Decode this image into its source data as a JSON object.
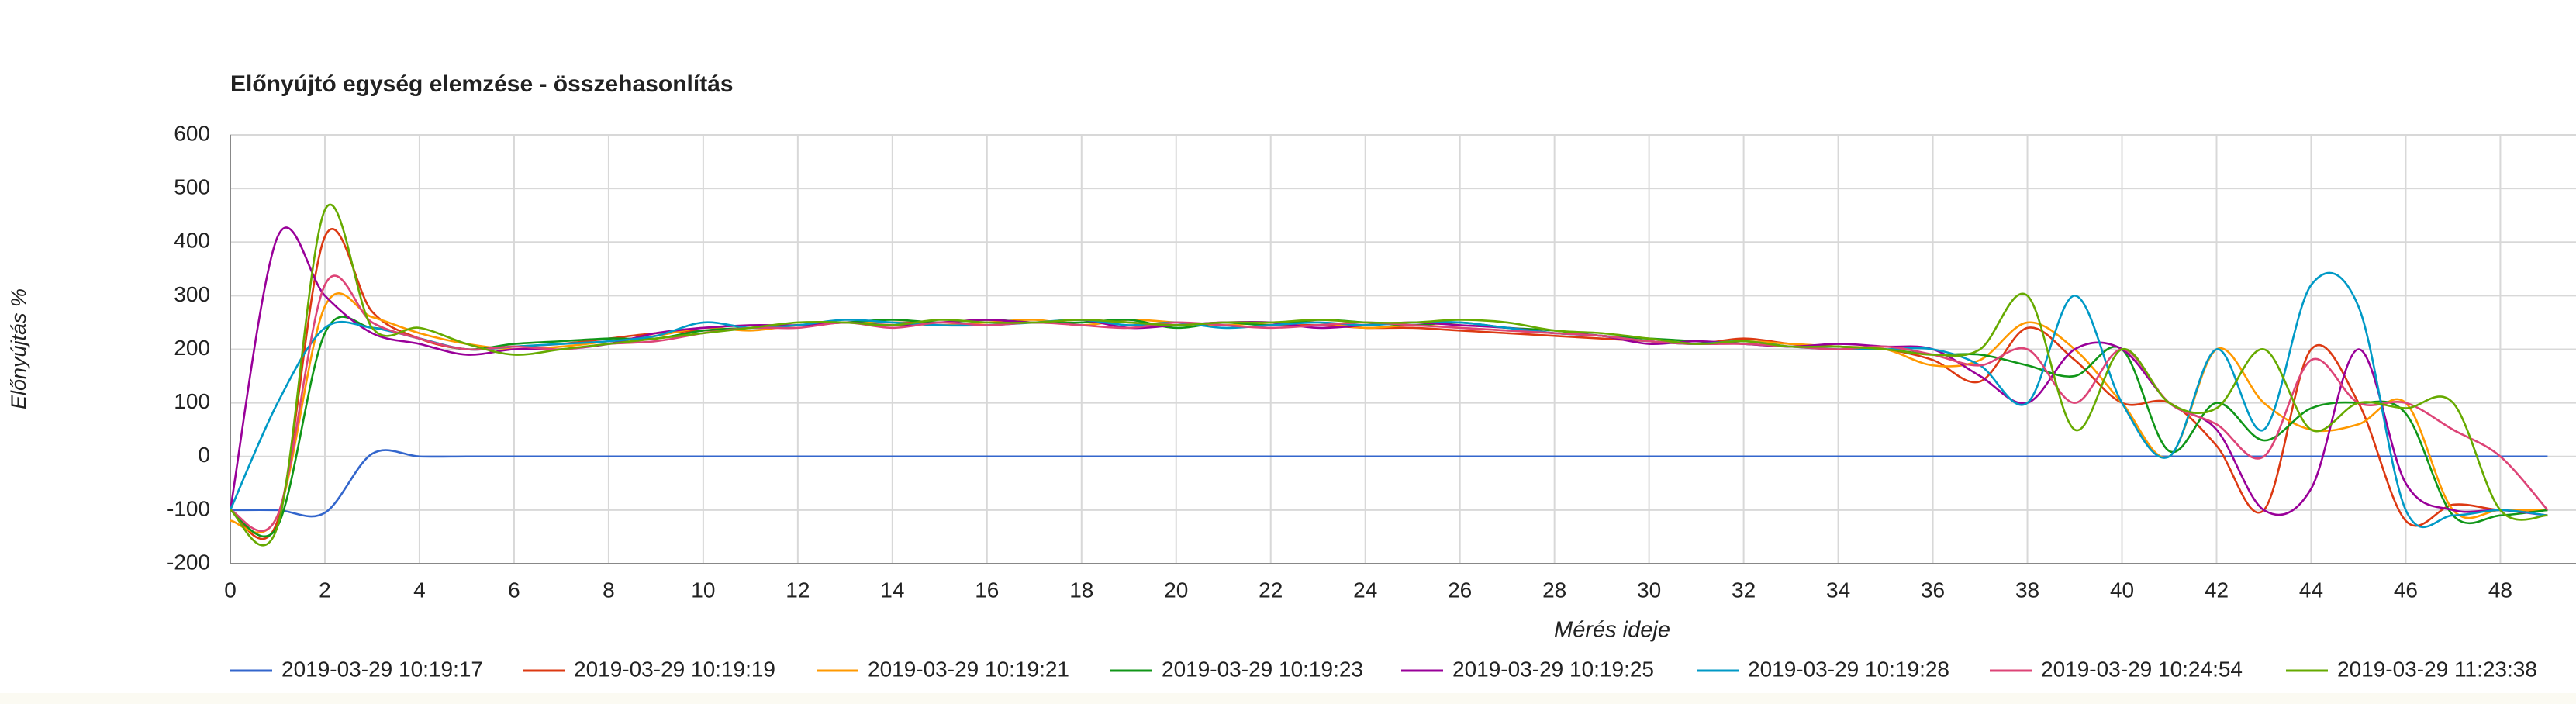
{
  "chart_data": {
    "type": "line",
    "title": "Előnyújtó egység elemzése - összehasonlítás",
    "x_label": "Mérés ideje",
    "y_label": "Előnyújtás %",
    "grid": true,
    "xlim": [
      0,
      49.6
    ],
    "ylim": [
      -200,
      600
    ],
    "xticks": [
      0,
      2,
      4,
      6,
      8,
      10,
      12,
      14,
      16,
      18,
      20,
      22,
      24,
      26,
      28,
      30,
      32,
      34,
      36,
      38,
      40,
      42,
      44,
      46,
      48
    ],
    "yticks": [
      -200,
      -100,
      0,
      100,
      200,
      300,
      400,
      500,
      600
    ],
    "x": [
      0,
      1,
      2,
      3,
      4,
      5,
      6,
      7,
      8,
      9,
      10,
      11,
      12,
      13,
      14,
      15,
      16,
      17,
      18,
      19,
      20,
      21,
      22,
      23,
      24,
      25,
      26,
      27,
      28,
      29,
      30,
      31,
      32,
      33,
      34,
      35,
      36,
      37,
      38,
      39,
      40,
      41,
      42,
      43,
      44,
      45,
      46,
      47,
      48,
      49
    ],
    "series": [
      {
        "name": "2019-03-29 10:19:17",
        "color": "#3366cc",
        "values": [
          -100,
          -100,
          -105,
          5,
          0,
          0,
          0,
          0,
          0,
          0,
          0,
          0,
          0,
          0,
          0,
          0,
          0,
          0,
          0,
          0,
          0,
          0,
          0,
          0,
          0,
          0,
          0,
          0,
          0,
          0,
          0,
          0,
          0,
          0,
          0,
          0,
          0,
          0,
          0,
          0,
          0,
          0,
          0,
          0,
          0,
          0,
          0,
          0,
          0,
          0
        ]
      },
      {
        "name": "2019-03-29 10:19:19",
        "color": "#dc3912",
        "values": [
          -100,
          -120,
          410,
          270,
          220,
          200,
          205,
          210,
          220,
          230,
          235,
          240,
          245,
          250,
          250,
          250,
          255,
          250,
          255,
          250,
          245,
          250,
          245,
          245,
          240,
          240,
          235,
          230,
          225,
          220,
          215,
          210,
          220,
          210,
          205,
          200,
          180,
          140,
          240,
          180,
          100,
          100,
          20,
          -100,
          200,
          100,
          -120,
          -90,
          -100,
          -100
        ]
      },
      {
        "name": "2019-03-29 10:19:21",
        "color": "#ff9900",
        "values": [
          -120,
          -110,
          280,
          260,
          230,
          210,
          200,
          205,
          215,
          225,
          240,
          235,
          245,
          250,
          250,
          245,
          250,
          255,
          245,
          255,
          250,
          245,
          250,
          250,
          240,
          245,
          240,
          235,
          230,
          225,
          215,
          210,
          215,
          210,
          205,
          200,
          170,
          180,
          250,
          200,
          100,
          0,
          200,
          100,
          50,
          60,
          100,
          -100,
          -100,
          -100
        ]
      },
      {
        "name": "2019-03-29 10:19:23",
        "color": "#109618",
        "values": [
          -100,
          -130,
          230,
          240,
          220,
          200,
          210,
          215,
          220,
          220,
          235,
          240,
          245,
          250,
          255,
          250,
          255,
          250,
          250,
          255,
          240,
          250,
          245,
          255,
          250,
          245,
          250,
          240,
          235,
          225,
          220,
          215,
          210,
          205,
          205,
          200,
          190,
          190,
          170,
          150,
          200,
          10,
          100,
          30,
          90,
          100,
          80,
          -110,
          -110,
          -100
        ]
      },
      {
        "name": "2019-03-29 10:19:25",
        "color": "#990099",
        "values": [
          -100,
          410,
          300,
          230,
          210,
          190,
          200,
          200,
          210,
          230,
          240,
          245,
          245,
          250,
          245,
          250,
          255,
          250,
          255,
          240,
          245,
          250,
          250,
          240,
          245,
          250,
          245,
          240,
          230,
          225,
          210,
          215,
          210,
          205,
          210,
          205,
          200,
          150,
          100,
          200,
          200,
          100,
          50,
          -100,
          -60,
          200,
          -50,
          -100,
          -100,
          -110
        ]
      },
      {
        "name": "2019-03-29 10:19:28",
        "color": "#0099c6",
        "values": [
          -100,
          100,
          240,
          240,
          220,
          200,
          205,
          210,
          215,
          225,
          250,
          240,
          245,
          255,
          250,
          245,
          245,
          250,
          255,
          245,
          250,
          240,
          245,
          250,
          245,
          250,
          250,
          240,
          230,
          225,
          215,
          210,
          215,
          205,
          200,
          200,
          200,
          170,
          100,
          300,
          100,
          0,
          200,
          50,
          320,
          280,
          -100,
          -110,
          -100,
          -110
        ]
      },
      {
        "name": "2019-03-29 10:24:54",
        "color": "#dd4477",
        "values": [
          -100,
          -110,
          320,
          250,
          220,
          200,
          205,
          200,
          210,
          215,
          230,
          240,
          240,
          250,
          240,
          250,
          245,
          250,
          245,
          240,
          250,
          245,
          240,
          245,
          250,
          245,
          240,
          235,
          230,
          225,
          215,
          210,
          210,
          205,
          200,
          205,
          190,
          170,
          200,
          100,
          200,
          100,
          60,
          0,
          180,
          100,
          100,
          50,
          0,
          -100
        ]
      },
      {
        "name": "2019-03-29 11:23:38",
        "color": "#66aa00",
        "values": [
          -100,
          -130,
          460,
          240,
          240,
          210,
          190,
          200,
          210,
          220,
          230,
          240,
          250,
          250,
          245,
          255,
          250,
          250,
          255,
          250,
          245,
          250,
          250,
          255,
          250,
          250,
          255,
          250,
          235,
          230,
          220,
          210,
          215,
          205,
          205,
          200,
          190,
          200,
          300,
          50,
          200,
          100,
          90,
          200,
          50,
          100,
          90,
          100,
          -100,
          -110
        ]
      }
    ]
  }
}
